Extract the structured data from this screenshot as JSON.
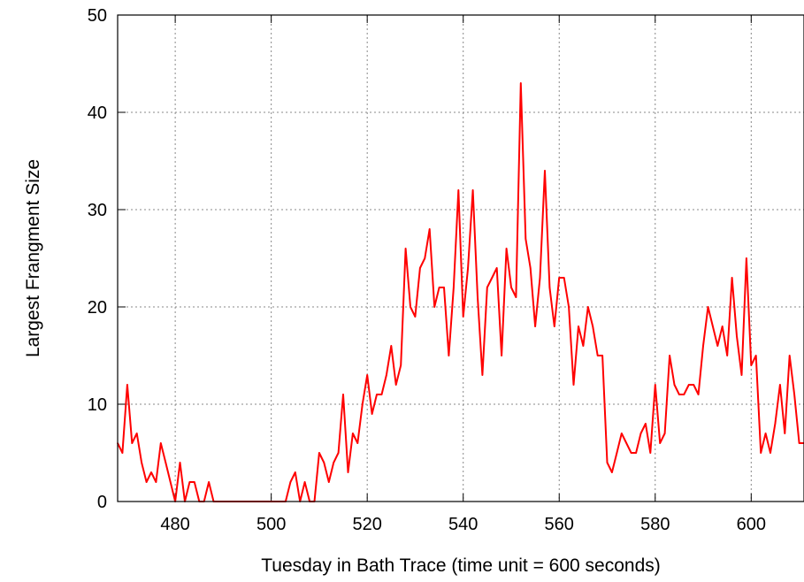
{
  "chart_data": {
    "type": "line",
    "xlabel": "Tuesday in Bath Trace (time unit = 600 seconds)",
    "ylabel": "Largest Frangment Size",
    "xlim": [
      468,
      611
    ],
    "ylim": [
      0,
      50
    ],
    "xticks": [
      480,
      500,
      520,
      540,
      560,
      580,
      600
    ],
    "yticks": [
      0,
      10,
      20,
      30,
      40,
      50
    ],
    "grid": true,
    "series": [
      {
        "color": "#ff0000",
        "x": [
          468,
          469,
          470,
          471,
          472,
          473,
          474,
          475,
          476,
          477,
          478,
          479,
          480,
          481,
          482,
          483,
          484,
          485,
          486,
          487,
          488,
          489,
          490,
          491,
          492,
          493,
          494,
          495,
          496,
          497,
          498,
          499,
          500,
          501,
          502,
          503,
          504,
          505,
          506,
          507,
          508,
          509,
          510,
          511,
          512,
          513,
          514,
          515,
          516,
          517,
          518,
          519,
          520,
          521,
          522,
          523,
          524,
          525,
          526,
          527,
          528,
          529,
          530,
          531,
          532,
          533,
          534,
          535,
          536,
          537,
          538,
          539,
          540,
          541,
          542,
          543,
          544,
          545,
          546,
          547,
          548,
          549,
          550,
          551,
          552,
          553,
          554,
          555,
          556,
          557,
          558,
          559,
          560,
          561,
          562,
          563,
          564,
          565,
          566,
          567,
          568,
          569,
          570,
          571,
          572,
          573,
          574,
          575,
          576,
          577,
          578,
          579,
          580,
          581,
          582,
          583,
          584,
          585,
          586,
          587,
          588,
          589,
          590,
          591,
          592,
          593,
          594,
          595,
          596,
          597,
          598,
          599,
          600,
          601,
          602,
          603,
          604,
          605,
          606,
          607,
          608,
          609,
          610,
          611
        ],
        "y": [
          6,
          5,
          12,
          6,
          7,
          4,
          2,
          3,
          2,
          6,
          4,
          2,
          0,
          4,
          0,
          2,
          2,
          0,
          0,
          2,
          0,
          0,
          0,
          0,
          0,
          0,
          0,
          0,
          0,
          0,
          0,
          0,
          0,
          0,
          0,
          0,
          2,
          3,
          0,
          2,
          0,
          0,
          5,
          4,
          2,
          4,
          5,
          11,
          3,
          7,
          6,
          10,
          13,
          9,
          11,
          11,
          13,
          16,
          12,
          14,
          26,
          20,
          19,
          24,
          25,
          28,
          20,
          22,
          22,
          15,
          22,
          32,
          19,
          24,
          32,
          21,
          13,
          22,
          23,
          24,
          15,
          26,
          22,
          21,
          43,
          27,
          24,
          18,
          23,
          34,
          22,
          18,
          23,
          23,
          20,
          12,
          18,
          16,
          20,
          18,
          15,
          15,
          4,
          3,
          5,
          7,
          6,
          5,
          5,
          7,
          8,
          5,
          12,
          6,
          7,
          15,
          12,
          11,
          11,
          12,
          12,
          11,
          16,
          20,
          18,
          16,
          18,
          15,
          23,
          17,
          13,
          25,
          14,
          15,
          5,
          7,
          5,
          8,
          12,
          7,
          15,
          11,
          6,
          6
        ]
      }
    ]
  }
}
